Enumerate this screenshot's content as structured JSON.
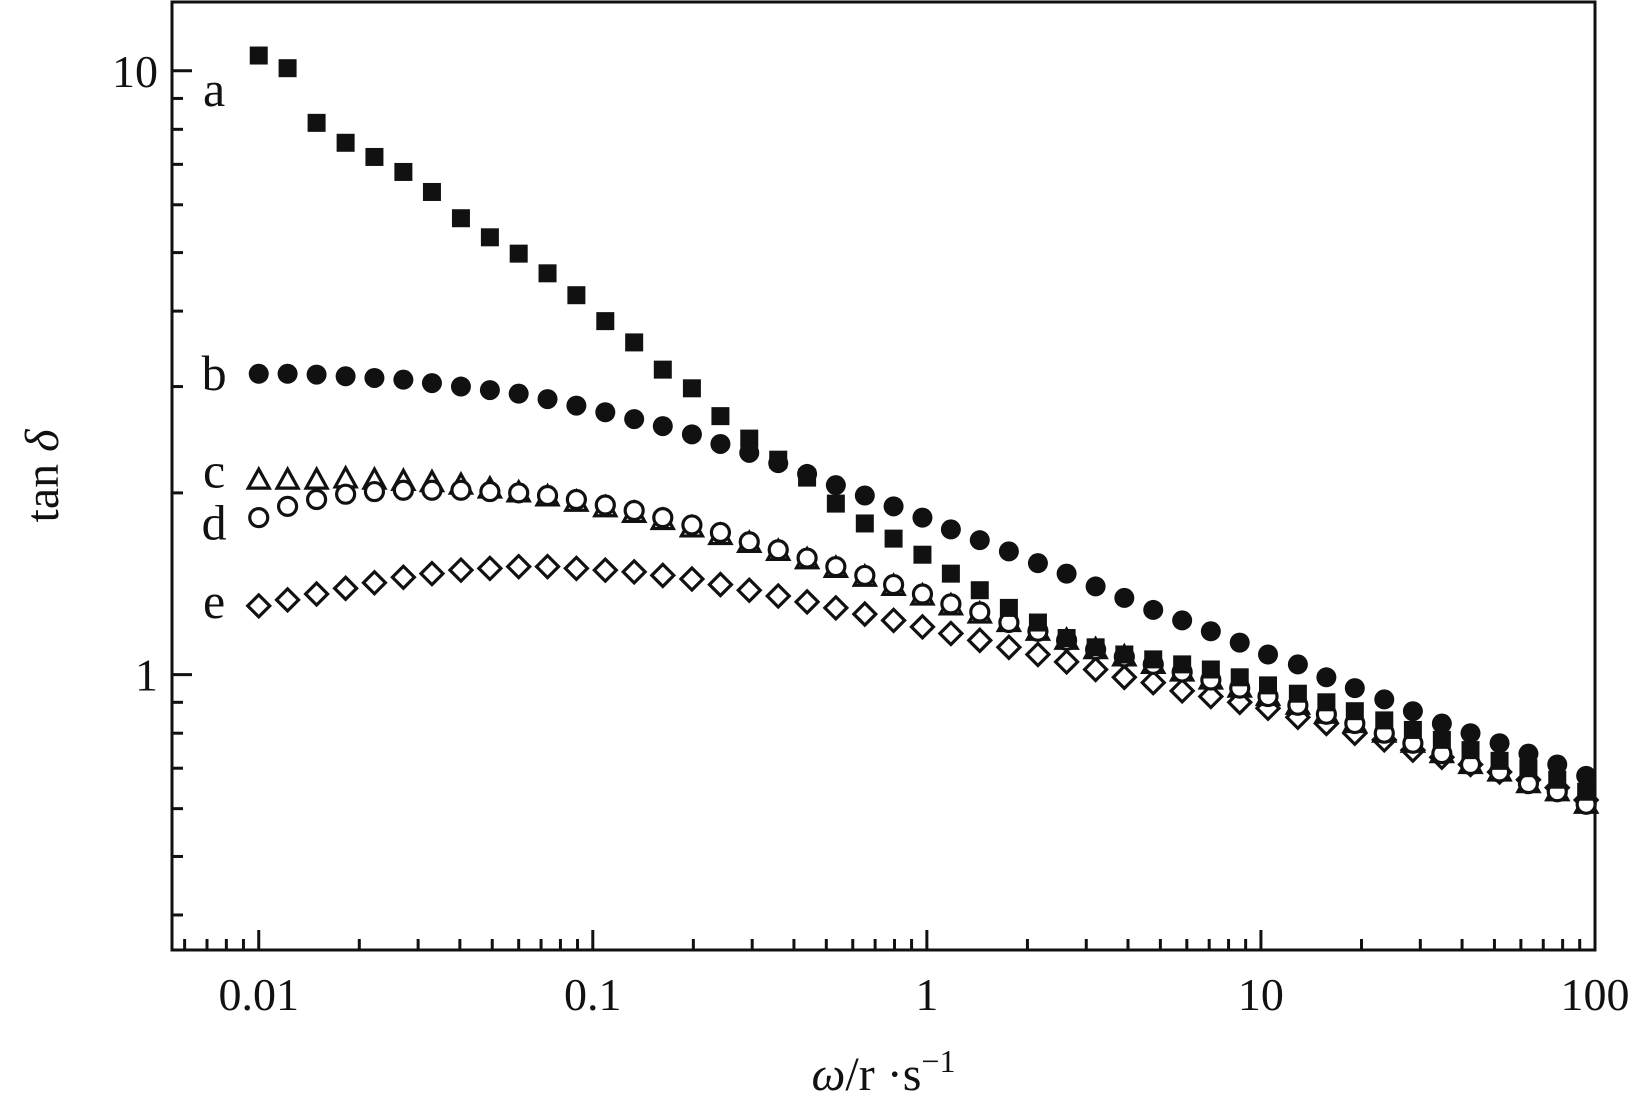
{
  "chart_data": {
    "type": "scatter",
    "x_scale": "log",
    "y_scale": "log",
    "xlim": [
      0.0055,
      100
    ],
    "ylim": [
      0.35,
      13
    ],
    "grid": false,
    "legend": "none",
    "xlabel": {
      "symbol": "ω",
      "rest": "/r ·s",
      "sup": "−1"
    },
    "ylabel": {
      "rest": "tan ",
      "symbol": "δ"
    },
    "x_ticks": [
      {
        "value": 0.01,
        "label": "0.01"
      },
      {
        "value": 0.1,
        "label": "0.1"
      },
      {
        "value": 1,
        "label": "1"
      },
      {
        "value": 10,
        "label": "10"
      },
      {
        "value": 100,
        "label": "100"
      }
    ],
    "y_ticks": [
      {
        "value": 1,
        "label": "1"
      },
      {
        "value": 10,
        "label": "10"
      }
    ],
    "series": [
      {
        "name": "a",
        "marker": "square-filled",
        "label_at": [
          0.00735,
          9.3
        ],
        "points": [
          [
            0.01,
            10.6
          ],
          [
            0.0122,
            10.1
          ],
          [
            0.0149,
            8.2
          ],
          [
            0.0182,
            7.6
          ],
          [
            0.0222,
            7.2
          ],
          [
            0.0271,
            6.8
          ],
          [
            0.033,
            6.3
          ],
          [
            0.0403,
            5.7
          ],
          [
            0.0492,
            5.3
          ],
          [
            0.06,
            4.98
          ],
          [
            0.0732,
            4.62
          ],
          [
            0.0893,
            4.25
          ],
          [
            0.109,
            3.85
          ],
          [
            0.133,
            3.55
          ],
          [
            0.162,
            3.2
          ],
          [
            0.198,
            2.98
          ],
          [
            0.241,
            2.68
          ],
          [
            0.294,
            2.46
          ],
          [
            0.359,
            2.27
          ],
          [
            0.438,
            2.12
          ],
          [
            0.534,
            1.92
          ],
          [
            0.652,
            1.78
          ],
          [
            0.795,
            1.68
          ],
          [
            0.97,
            1.58
          ],
          [
            1.18,
            1.47
          ],
          [
            1.44,
            1.38
          ],
          [
            1.76,
            1.29
          ],
          [
            2.15,
            1.22
          ],
          [
            2.62,
            1.15
          ],
          [
            3.2,
            1.11
          ],
          [
            3.9,
            1.08
          ],
          [
            4.76,
            1.06
          ],
          [
            5.81,
            1.04
          ],
          [
            7.08,
            1.02
          ],
          [
            8.64,
            0.99
          ],
          [
            10.5,
            0.96
          ],
          [
            12.9,
            0.93
          ],
          [
            15.7,
            0.9
          ],
          [
            19.1,
            0.87
          ],
          [
            23.4,
            0.84
          ],
          [
            28.5,
            0.81
          ],
          [
            34.8,
            0.78
          ],
          [
            42.4,
            0.75
          ],
          [
            51.8,
            0.72
          ],
          [
            63.2,
            0.7
          ],
          [
            77.1,
            0.67
          ],
          [
            94.1,
            0.64
          ]
        ]
      },
      {
        "name": "b",
        "marker": "circle-filled",
        "label_at": [
          0.00735,
          3.15
        ],
        "points": [
          [
            0.01,
            3.15
          ],
          [
            0.0122,
            3.15
          ],
          [
            0.0149,
            3.14
          ],
          [
            0.0182,
            3.12
          ],
          [
            0.0222,
            3.1
          ],
          [
            0.0271,
            3.08
          ],
          [
            0.033,
            3.04
          ],
          [
            0.0403,
            3.0
          ],
          [
            0.0492,
            2.96
          ],
          [
            0.06,
            2.92
          ],
          [
            0.0732,
            2.86
          ],
          [
            0.0893,
            2.79
          ],
          [
            0.109,
            2.72
          ],
          [
            0.133,
            2.65
          ],
          [
            0.162,
            2.58
          ],
          [
            0.198,
            2.5
          ],
          [
            0.241,
            2.41
          ],
          [
            0.294,
            2.33
          ],
          [
            0.359,
            2.24
          ],
          [
            0.438,
            2.15
          ],
          [
            0.534,
            2.06
          ],
          [
            0.652,
            1.98
          ],
          [
            0.795,
            1.9
          ],
          [
            0.97,
            1.82
          ],
          [
            1.18,
            1.74
          ],
          [
            1.44,
            1.67
          ],
          [
            1.76,
            1.6
          ],
          [
            2.15,
            1.53
          ],
          [
            2.62,
            1.47
          ],
          [
            3.2,
            1.4
          ],
          [
            3.9,
            1.34
          ],
          [
            4.76,
            1.28
          ],
          [
            5.81,
            1.23
          ],
          [
            7.08,
            1.18
          ],
          [
            8.64,
            1.13
          ],
          [
            10.5,
            1.08
          ],
          [
            12.9,
            1.04
          ],
          [
            15.7,
            0.99
          ],
          [
            19.1,
            0.95
          ],
          [
            23.4,
            0.91
          ],
          [
            28.5,
            0.87
          ],
          [
            34.8,
            0.83
          ],
          [
            42.4,
            0.8
          ],
          [
            51.8,
            0.77
          ],
          [
            63.2,
            0.74
          ],
          [
            77.1,
            0.71
          ],
          [
            94.1,
            0.68
          ]
        ]
      },
      {
        "name": "c",
        "marker": "triangle-open",
        "label_at": [
          0.00735,
          2.17
        ],
        "points": [
          [
            0.01,
            2.1
          ],
          [
            0.0122,
            2.1
          ],
          [
            0.0149,
            2.1
          ],
          [
            0.0182,
            2.11
          ],
          [
            0.0222,
            2.1
          ],
          [
            0.0271,
            2.09
          ],
          [
            0.033,
            2.08
          ],
          [
            0.0403,
            2.06
          ],
          [
            0.0492,
            2.03
          ],
          [
            0.06,
            2.0
          ],
          [
            0.0732,
            1.97
          ],
          [
            0.0893,
            1.93
          ],
          [
            0.109,
            1.89
          ],
          [
            0.133,
            1.85
          ],
          [
            0.162,
            1.8
          ],
          [
            0.198,
            1.75
          ],
          [
            0.241,
            1.7
          ],
          [
            0.294,
            1.65
          ],
          [
            0.359,
            1.6
          ],
          [
            0.438,
            1.55
          ],
          [
            0.534,
            1.5
          ],
          [
            0.652,
            1.45
          ],
          [
            0.795,
            1.4
          ],
          [
            0.97,
            1.35
          ],
          [
            1.18,
            1.3
          ],
          [
            1.44,
            1.26
          ],
          [
            1.76,
            1.22
          ],
          [
            2.15,
            1.18
          ],
          [
            2.62,
            1.14
          ],
          [
            3.2,
            1.1
          ],
          [
            3.9,
            1.07
          ],
          [
            4.76,
            1.04
          ],
          [
            5.81,
            1.01
          ],
          [
            7.08,
            0.98
          ],
          [
            8.64,
            0.95
          ],
          [
            10.5,
            0.92
          ],
          [
            12.9,
            0.89
          ],
          [
            15.7,
            0.86
          ],
          [
            19.1,
            0.83
          ],
          [
            23.4,
            0.8
          ],
          [
            28.5,
            0.77
          ],
          [
            34.8,
            0.74
          ],
          [
            42.4,
            0.71
          ],
          [
            51.8,
            0.69
          ],
          [
            63.2,
            0.66
          ],
          [
            77.1,
            0.64
          ],
          [
            94.1,
            0.61
          ]
        ]
      },
      {
        "name": "d",
        "marker": "circle-open",
        "label_at": [
          0.00735,
          1.78
        ],
        "points": [
          [
            0.01,
            1.82
          ],
          [
            0.0122,
            1.9
          ],
          [
            0.0149,
            1.95
          ],
          [
            0.0182,
            1.99
          ],
          [
            0.0222,
            2.01
          ],
          [
            0.0271,
            2.02
          ],
          [
            0.033,
            2.02
          ],
          [
            0.0403,
            2.02
          ],
          [
            0.0492,
            2.01
          ],
          [
            0.06,
            2.0
          ],
          [
            0.0732,
            1.98
          ],
          [
            0.0893,
            1.95
          ],
          [
            0.109,
            1.91
          ],
          [
            0.133,
            1.87
          ],
          [
            0.162,
            1.82
          ],
          [
            0.198,
            1.77
          ],
          [
            0.241,
            1.72
          ],
          [
            0.294,
            1.66
          ],
          [
            0.359,
            1.61
          ],
          [
            0.438,
            1.56
          ],
          [
            0.534,
            1.51
          ],
          [
            0.652,
            1.46
          ],
          [
            0.795,
            1.41
          ],
          [
            0.97,
            1.36
          ],
          [
            1.18,
            1.31
          ],
          [
            1.44,
            1.27
          ],
          [
            1.76,
            1.22
          ],
          [
            2.15,
            1.18
          ],
          [
            2.62,
            1.14
          ],
          [
            3.2,
            1.1
          ],
          [
            3.9,
            1.07
          ],
          [
            4.76,
            1.04
          ],
          [
            5.81,
            1.01
          ],
          [
            7.08,
            0.98
          ],
          [
            8.64,
            0.95
          ],
          [
            10.5,
            0.92
          ],
          [
            12.9,
            0.89
          ],
          [
            15.7,
            0.86
          ],
          [
            19.1,
            0.83
          ],
          [
            23.4,
            0.8
          ],
          [
            28.5,
            0.77
          ],
          [
            34.8,
            0.74
          ],
          [
            42.4,
            0.71
          ],
          [
            51.8,
            0.69
          ],
          [
            63.2,
            0.66
          ],
          [
            77.1,
            0.64
          ],
          [
            94.1,
            0.61
          ]
        ]
      },
      {
        "name": "e",
        "marker": "diamond-open",
        "label_at": [
          0.00735,
          1.32
        ],
        "points": [
          [
            0.01,
            1.3
          ],
          [
            0.0122,
            1.33
          ],
          [
            0.0149,
            1.36
          ],
          [
            0.0182,
            1.39
          ],
          [
            0.0222,
            1.42
          ],
          [
            0.0271,
            1.45
          ],
          [
            0.033,
            1.47
          ],
          [
            0.0403,
            1.49
          ],
          [
            0.0492,
            1.5
          ],
          [
            0.06,
            1.51
          ],
          [
            0.0732,
            1.51
          ],
          [
            0.0893,
            1.5
          ],
          [
            0.109,
            1.49
          ],
          [
            0.133,
            1.48
          ],
          [
            0.162,
            1.46
          ],
          [
            0.198,
            1.44
          ],
          [
            0.241,
            1.41
          ],
          [
            0.294,
            1.38
          ],
          [
            0.359,
            1.35
          ],
          [
            0.438,
            1.32
          ],
          [
            0.534,
            1.29
          ],
          [
            0.652,
            1.26
          ],
          [
            0.795,
            1.23
          ],
          [
            0.97,
            1.2
          ],
          [
            1.18,
            1.17
          ],
          [
            1.44,
            1.14
          ],
          [
            1.76,
            1.11
          ],
          [
            2.15,
            1.08
          ],
          [
            2.62,
            1.05
          ],
          [
            3.2,
            1.02
          ],
          [
            3.9,
            0.99
          ],
          [
            4.76,
            0.97
          ],
          [
            5.81,
            0.94
          ],
          [
            7.08,
            0.92
          ],
          [
            8.64,
            0.9
          ],
          [
            10.5,
            0.88
          ],
          [
            12.9,
            0.85
          ],
          [
            15.7,
            0.83
          ],
          [
            19.1,
            0.8
          ],
          [
            23.4,
            0.78
          ],
          [
            28.5,
            0.75
          ],
          [
            34.8,
            0.73
          ],
          [
            42.4,
            0.71
          ],
          [
            51.8,
            0.69
          ],
          [
            63.2,
            0.67
          ],
          [
            77.1,
            0.65
          ],
          [
            94.1,
            0.62
          ]
        ]
      }
    ]
  }
}
